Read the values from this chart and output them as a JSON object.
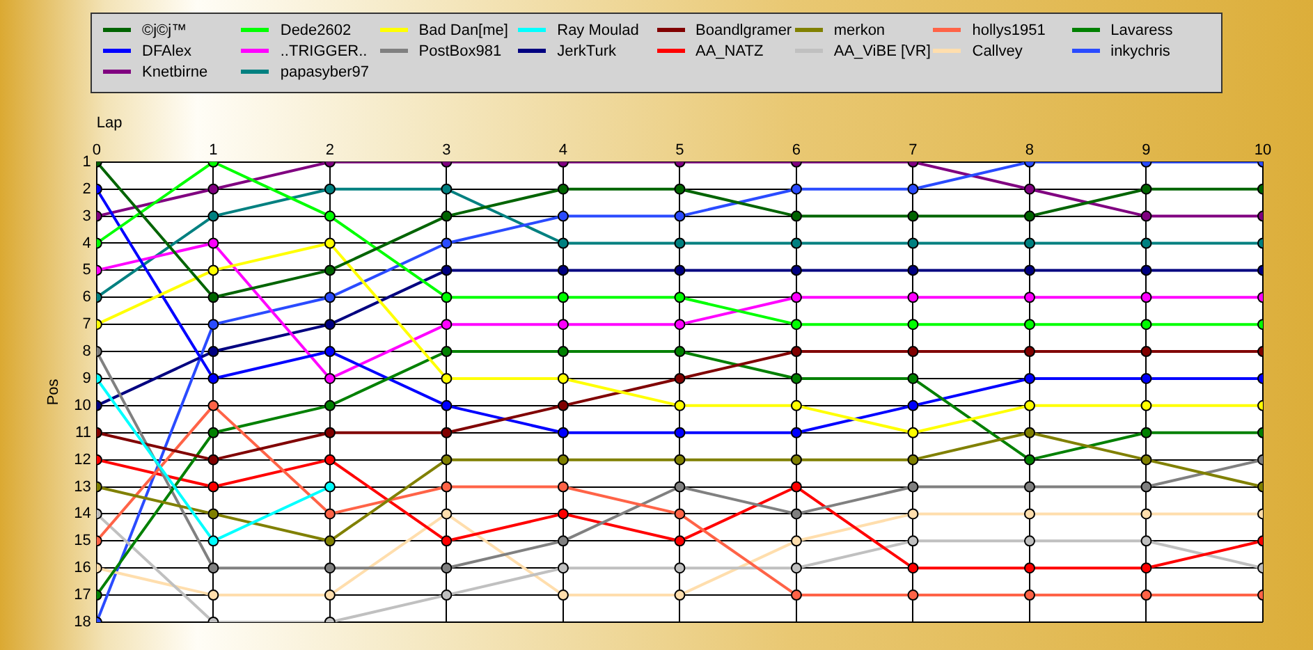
{
  "chart_data": {
    "type": "line",
    "xlabel": "Lap",
    "ylabel": "Pos",
    "x": [
      0,
      1,
      2,
      3,
      4,
      5,
      6,
      7,
      8,
      9,
      10
    ],
    "xlim": [
      0,
      10
    ],
    "xticks": [
      0,
      1,
      2,
      3,
      4,
      5,
      6,
      7,
      8,
      9,
      10
    ],
    "ylim": [
      18,
      1
    ],
    "yticks": [
      1,
      2,
      3,
      4,
      5,
      6,
      7,
      8,
      9,
      10,
      11,
      12,
      13,
      14,
      15,
      16,
      17,
      18
    ],
    "grid": true,
    "legend": "top",
    "marker": "circle",
    "line_style": "solid",
    "series": [
      {
        "name": "©j©j™",
        "color": "#006400",
        "values": [
          1,
          6,
          5,
          3,
          2,
          2,
          3,
          3,
          3,
          2,
          2
        ]
      },
      {
        "name": "Dede2602",
        "color": "#00ff00",
        "values": [
          4,
          1,
          3,
          6,
          6,
          6,
          7,
          7,
          7,
          7,
          7
        ]
      },
      {
        "name": "Bad Dan[me]",
        "color": "#ffff00",
        "values": [
          7,
          5,
          4,
          9,
          9,
          10,
          10,
          11,
          10,
          10,
          10
        ]
      },
      {
        "name": "Ray Moulad",
        "color": "#00ffff",
        "values": [
          9,
          15,
          13,
          null,
          null,
          null,
          null,
          null,
          null,
          null,
          null
        ]
      },
      {
        "name": "Boandlgramer",
        "color": "#800000",
        "values": [
          11,
          12,
          11,
          11,
          10,
          9,
          8,
          8,
          8,
          8,
          8
        ]
      },
      {
        "name": "merkon",
        "color": "#808000",
        "values": [
          13,
          14,
          15,
          12,
          12,
          12,
          12,
          12,
          11,
          12,
          13
        ]
      },
      {
        "name": "hollys1951",
        "color": "#ff6347",
        "values": [
          15,
          10,
          14,
          13,
          13,
          14,
          17,
          17,
          17,
          17,
          17
        ]
      },
      {
        "name": "Lavaress",
        "color": "#008000",
        "values": [
          17,
          11,
          10,
          8,
          8,
          8,
          9,
          9,
          12,
          11,
          11
        ]
      },
      {
        "name": "DFAlex",
        "color": "#0000ff",
        "values": [
          2,
          9,
          8,
          10,
          11,
          11,
          11,
          10,
          9,
          9,
          9
        ]
      },
      {
        "name": "..TRIGGER..",
        "color": "#ff00ff",
        "values": [
          5,
          4,
          9,
          7,
          7,
          7,
          6,
          6,
          6,
          6,
          6
        ]
      },
      {
        "name": "PostBox981",
        "color": "#808080",
        "values": [
          8,
          16,
          16,
          16,
          15,
          13,
          14,
          13,
          13,
          13,
          12
        ]
      },
      {
        "name": "JerkTurk",
        "color": "#000080",
        "values": [
          10,
          8,
          7,
          5,
          5,
          5,
          5,
          5,
          5,
          5,
          5
        ]
      },
      {
        "name": "AA_NATZ",
        "color": "#ff0000",
        "values": [
          12,
          13,
          12,
          15,
          14,
          15,
          13,
          16,
          16,
          16,
          15
        ]
      },
      {
        "name": "AA_ViBE [VR]",
        "color": "#c0c0c0",
        "values": [
          14,
          18,
          18,
          17,
          16,
          16,
          16,
          15,
          15,
          15,
          16
        ]
      },
      {
        "name": "Callvey",
        "color": "#ffdead",
        "values": [
          16,
          17,
          17,
          14,
          17,
          17,
          15,
          14,
          14,
          14,
          14
        ]
      },
      {
        "name": "inkychris",
        "color": "#2a4bff",
        "values": [
          18,
          7,
          6,
          4,
          3,
          3,
          2,
          2,
          1,
          1,
          1
        ]
      },
      {
        "name": "Knetbirne",
        "color": "#800080",
        "values": [
          3,
          2,
          1,
          1,
          1,
          1,
          1,
          1,
          2,
          3,
          3
        ]
      },
      {
        "name": "papasyber97",
        "color": "#008080",
        "values": [
          6,
          3,
          2,
          2,
          4,
          4,
          4,
          4,
          4,
          4,
          4
        ]
      }
    ]
  }
}
